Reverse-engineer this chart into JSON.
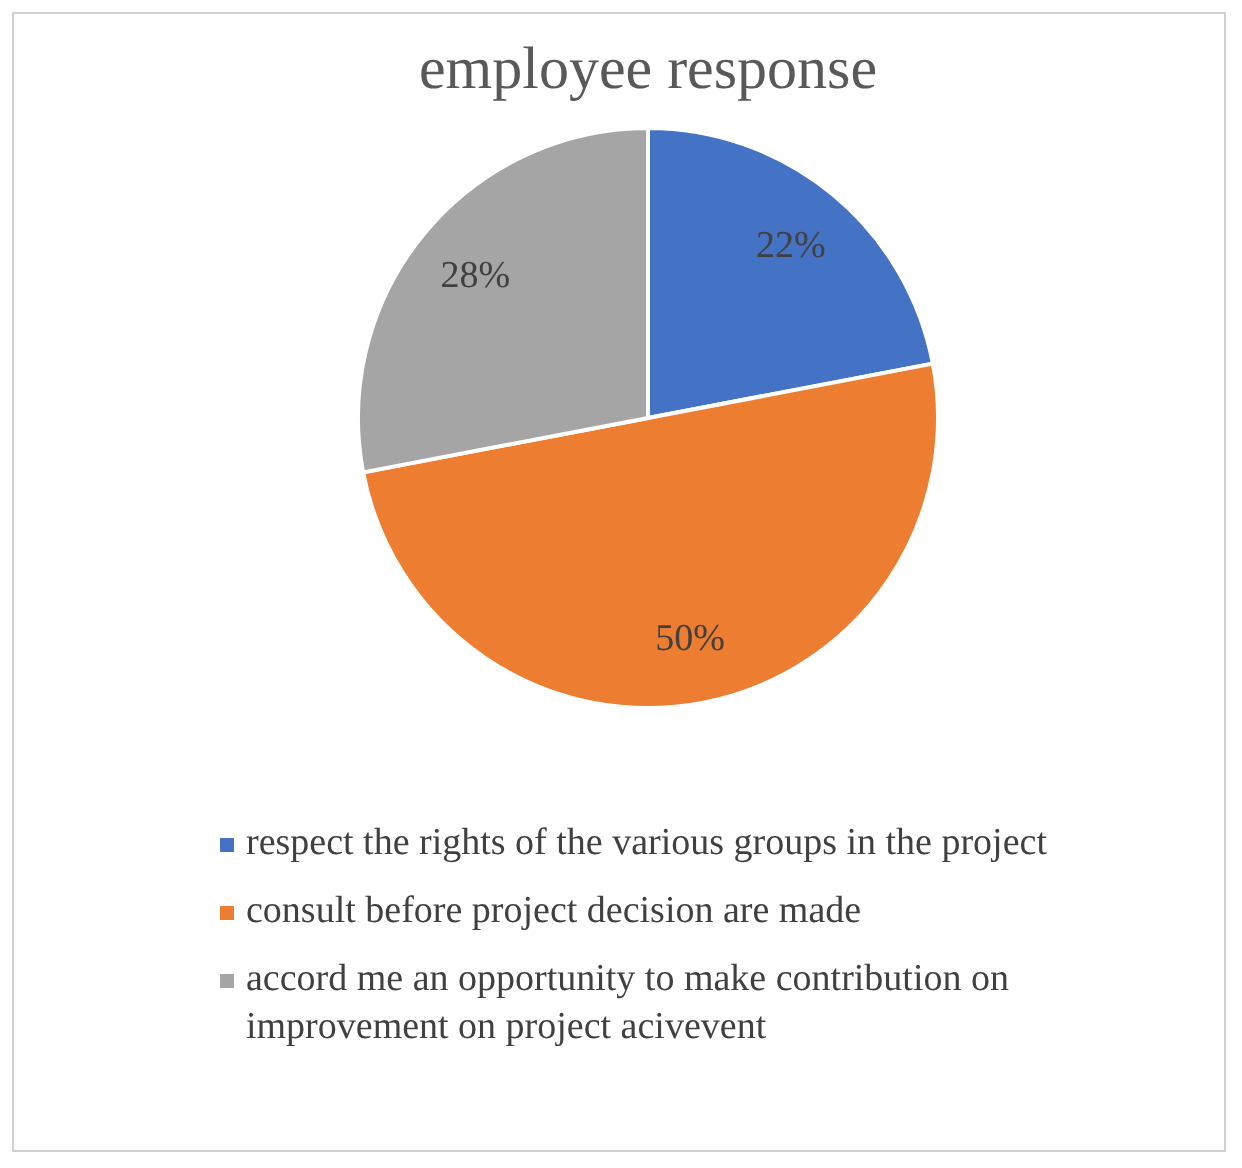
{
  "chart_data": {
    "type": "pie",
    "title": "employee response",
    "categories": [
      "respect the rights of the various groups in the project",
      "consult before project decision are made",
      "accord me an opportunity to make contribution on improvement on project acivevent"
    ],
    "values": [
      22,
      50,
      28
    ],
    "colors": [
      "#4472c4",
      "#ed7d31",
      "#a5a5a5"
    ],
    "value_labels": [
      "22%",
      "50%",
      "28%"
    ],
    "legend": "bottom"
  }
}
